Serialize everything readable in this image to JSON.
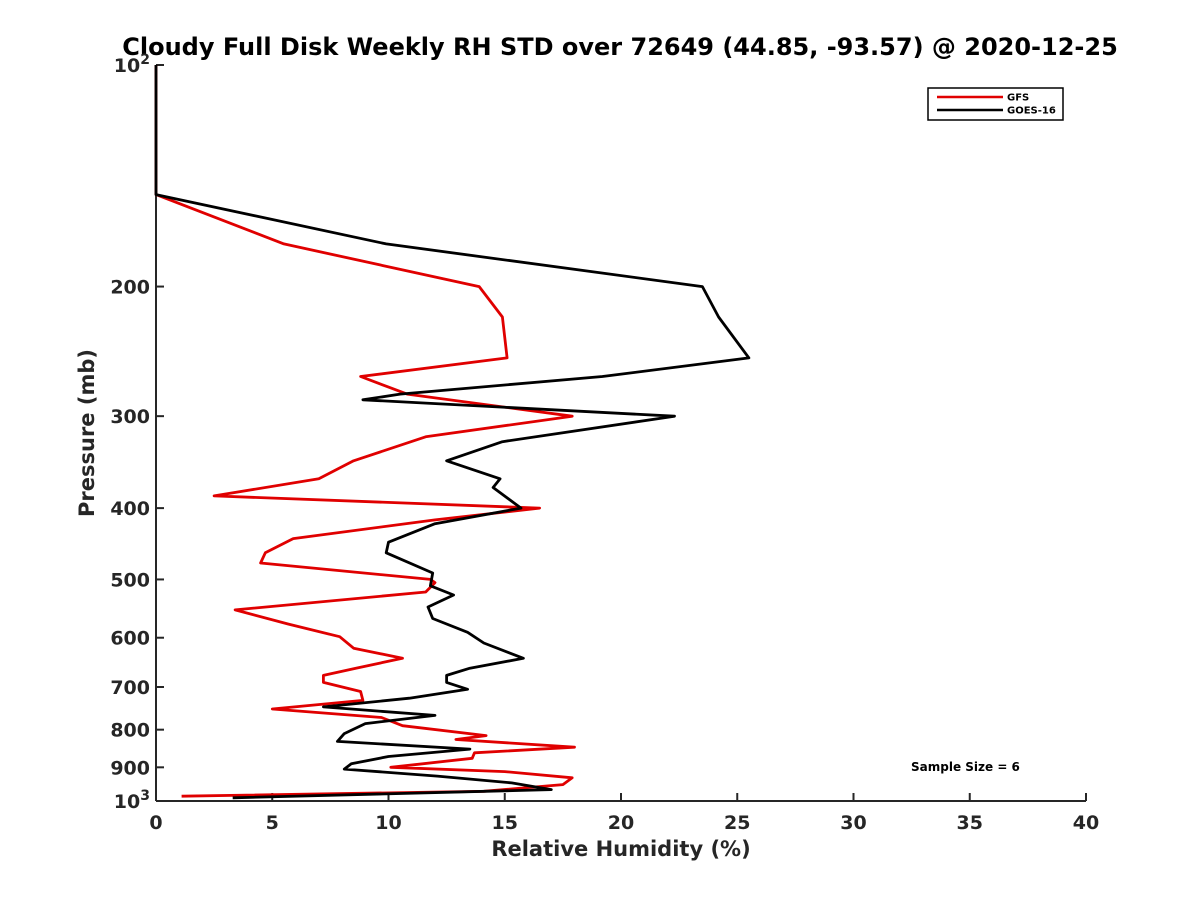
{
  "chart_data": {
    "type": "line",
    "title": "Cloudy Full Disk Weekly RH STD over 72649 (44.85, -93.57) @ 2020-12-25",
    "xlabel": "Relative Humidity (%)",
    "ylabel": "Pressure (mb)",
    "xlim": [
      0,
      40
    ],
    "ylim": [
      100,
      1000
    ],
    "y_scale": "log",
    "y_reversed": true,
    "x_ticks": [
      "0",
      "5",
      "10",
      "15",
      "20",
      "25",
      "30",
      "35",
      "40"
    ],
    "y_tick_labels": [
      {
        "value": 100,
        "base": "10",
        "exp": "2"
      },
      {
        "value": 200,
        "label": "200"
      },
      {
        "value": 300,
        "label": "300"
      },
      {
        "value": 400,
        "label": "400"
      },
      {
        "value": 500,
        "label": "500"
      },
      {
        "value": 600,
        "label": "600"
      },
      {
        "value": 700,
        "label": "700"
      },
      {
        "value": 800,
        "label": "800"
      },
      {
        "value": 900,
        "label": "900"
      },
      {
        "value": 1000,
        "base": "10",
        "exp": "3"
      }
    ],
    "grid": false,
    "legend_position": "top-right",
    "series": [
      {
        "name": "GFS",
        "color": "#e00000",
        "points": [
          [
            0,
            100
          ],
          [
            0,
            150
          ],
          [
            5.5,
            175
          ],
          [
            13.9,
            200
          ],
          [
            14.9,
            220
          ],
          [
            15.1,
            250
          ],
          [
            8.8,
            265
          ],
          [
            10.8,
            280
          ],
          [
            17.9,
            300
          ],
          [
            11.6,
            320
          ],
          [
            8.5,
            345
          ],
          [
            7.0,
            365
          ],
          [
            2.5,
            385
          ],
          [
            16.5,
            400
          ],
          [
            12.0,
            415
          ],
          [
            5.9,
            440
          ],
          [
            4.7,
            460
          ],
          [
            4.5,
            475
          ],
          [
            11.8,
            500
          ],
          [
            12.0,
            505
          ],
          [
            11.6,
            520
          ],
          [
            3.4,
            550
          ],
          [
            5.7,
            575
          ],
          [
            7.9,
            598
          ],
          [
            8.5,
            620
          ],
          [
            10.6,
            640
          ],
          [
            8.6,
            660
          ],
          [
            7.2,
            675
          ],
          [
            7.2,
            690
          ],
          [
            8.8,
            710
          ],
          [
            8.9,
            730
          ],
          [
            5.0,
            750
          ],
          [
            9.7,
            770
          ],
          [
            10.6,
            790
          ],
          [
            14.2,
            815
          ],
          [
            12.9,
            825
          ],
          [
            18.0,
            845
          ],
          [
            13.7,
            860
          ],
          [
            13.6,
            875
          ],
          [
            10.1,
            900
          ],
          [
            15.0,
            912
          ],
          [
            17.9,
            930
          ],
          [
            17.5,
            950
          ],
          [
            14.1,
            970
          ],
          [
            1.1,
            985
          ]
        ]
      },
      {
        "name": "GOES-16",
        "color": "#000000",
        "points": [
          [
            0,
            100
          ],
          [
            0,
            150
          ],
          [
            9.9,
            175
          ],
          [
            23.5,
            200
          ],
          [
            24.2,
            220
          ],
          [
            25.5,
            250
          ],
          [
            19.2,
            265
          ],
          [
            10.5,
            280
          ],
          [
            8.9,
            285
          ],
          [
            22.3,
            300
          ],
          [
            14.9,
            325
          ],
          [
            12.5,
            345
          ],
          [
            14.8,
            365
          ],
          [
            14.5,
            375
          ],
          [
            15.7,
            400
          ],
          [
            12.0,
            420
          ],
          [
            10.0,
            445
          ],
          [
            9.9,
            460
          ],
          [
            11.9,
            490
          ],
          [
            11.8,
            510
          ],
          [
            12.8,
            525
          ],
          [
            11.7,
            545
          ],
          [
            11.9,
            565
          ],
          [
            13.4,
            590
          ],
          [
            14.1,
            610
          ],
          [
            15.8,
            640
          ],
          [
            13.5,
            660
          ],
          [
            12.5,
            675
          ],
          [
            12.5,
            690
          ],
          [
            13.4,
            705
          ],
          [
            10.9,
            725
          ],
          [
            7.2,
            745
          ],
          [
            12.0,
            765
          ],
          [
            9.0,
            785
          ],
          [
            8.1,
            810
          ],
          [
            7.8,
            830
          ],
          [
            13.5,
            850
          ],
          [
            10.0,
            870
          ],
          [
            8.4,
            890
          ],
          [
            8.1,
            905
          ],
          [
            12.1,
            925
          ],
          [
            15.3,
            945
          ],
          [
            17.0,
            965
          ],
          [
            3.3,
            990
          ]
        ]
      }
    ],
    "annotation": "Sample Size = 6"
  }
}
